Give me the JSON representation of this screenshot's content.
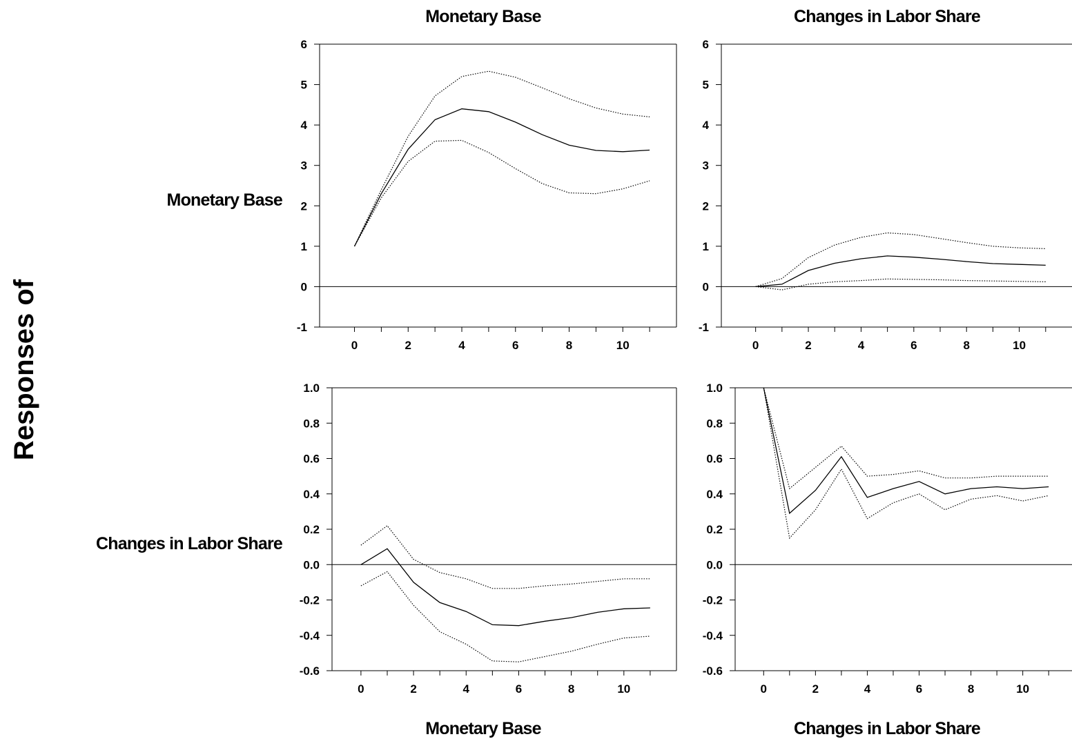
{
  "figure": {
    "row_axis_title": "Responses of",
    "col_titles_top": [
      "Monetary Base",
      "Changes in Labor Share"
    ],
    "col_titles_bottom": [
      "Monetary Base",
      "Changes in Labor Share"
    ],
    "row_titles": [
      "Monetary Base",
      "Changes in Labor Share"
    ]
  },
  "chart_data": [
    {
      "type": "line",
      "response": "Monetary Base",
      "shock": "Monetary Base",
      "x": [
        0,
        1,
        2,
        3,
        4,
        5,
        6,
        7,
        8,
        9,
        10,
        11
      ],
      "series": [
        {
          "role": "lower",
          "style": "dotted",
          "values": [
            1.0,
            2.2,
            3.1,
            3.6,
            3.62,
            3.32,
            2.92,
            2.55,
            2.32,
            2.3,
            2.42,
            2.62
          ]
        },
        {
          "role": "response",
          "style": "solid",
          "values": [
            1.0,
            2.3,
            3.4,
            4.13,
            4.4,
            4.33,
            4.07,
            3.76,
            3.5,
            3.37,
            3.34,
            3.38
          ]
        },
        {
          "role": "upper",
          "style": "dotted",
          "values": [
            1.0,
            2.4,
            3.72,
            4.72,
            5.2,
            5.33,
            5.18,
            4.92,
            4.65,
            4.42,
            4.27,
            4.2
          ]
        }
      ],
      "xticks": [
        "0",
        "2",
        "4",
        "6",
        "8",
        "10"
      ],
      "yticks": [
        "-1",
        "0",
        "1",
        "2",
        "3",
        "4",
        "5",
        "6"
      ],
      "xlim": [
        -1.3,
        12.0
      ],
      "ylim": [
        -1,
        6
      ],
      "zero_line": true
    },
    {
      "type": "line",
      "response": "Monetary Base",
      "shock": "Changes in Labor Share",
      "x": [
        0,
        1,
        2,
        3,
        4,
        5,
        6,
        7,
        8,
        9,
        10,
        11
      ],
      "series": [
        {
          "role": "lower",
          "style": "dotted",
          "values": [
            0.0,
            -0.08,
            0.06,
            0.12,
            0.15,
            0.19,
            0.18,
            0.17,
            0.15,
            0.14,
            0.13,
            0.12
          ]
        },
        {
          "role": "response",
          "style": "solid",
          "values": [
            0.0,
            0.06,
            0.4,
            0.58,
            0.69,
            0.76,
            0.73,
            0.68,
            0.62,
            0.57,
            0.55,
            0.53
          ]
        },
        {
          "role": "upper",
          "style": "dotted",
          "values": [
            0.0,
            0.2,
            0.72,
            1.03,
            1.22,
            1.33,
            1.29,
            1.19,
            1.09,
            1.0,
            0.96,
            0.94
          ]
        }
      ],
      "xticks": [
        "0",
        "2",
        "4",
        "6",
        "8",
        "10"
      ],
      "yticks": [
        "-1",
        "0",
        "1",
        "2",
        "3",
        "4",
        "5",
        "6"
      ],
      "xlim": [
        -1.3,
        12.0
      ],
      "ylim": [
        -1,
        6
      ],
      "zero_line": true
    },
    {
      "type": "line",
      "response": "Changes in Labor Share",
      "shock": "Monetary Base",
      "x": [
        0,
        1,
        2,
        3,
        4,
        5,
        6,
        7,
        8,
        9,
        10,
        11
      ],
      "series": [
        {
          "role": "lower",
          "style": "dotted",
          "values": [
            -0.12,
            -0.04,
            -0.23,
            -0.38,
            -0.45,
            -0.545,
            -0.55,
            -0.52,
            -0.49,
            -0.45,
            -0.415,
            -0.405
          ]
        },
        {
          "role": "response",
          "style": "solid",
          "values": [
            0.0,
            0.09,
            -0.1,
            -0.215,
            -0.265,
            -0.34,
            -0.345,
            -0.32,
            -0.3,
            -0.27,
            -0.25,
            -0.245
          ]
        },
        {
          "role": "upper",
          "style": "dotted",
          "values": [
            0.11,
            0.22,
            0.03,
            -0.045,
            -0.08,
            -0.135,
            -0.135,
            -0.12,
            -0.11,
            -0.095,
            -0.08,
            -0.08
          ]
        }
      ],
      "xticks": [
        "0",
        "2",
        "4",
        "6",
        "8",
        "10"
      ],
      "yticks": [
        "-0.6",
        "-0.4",
        "-0.2",
        "0.0",
        "0.2",
        "0.4",
        "0.6",
        "0.8",
        "1.0"
      ],
      "xlim": [
        -1.1,
        12.0
      ],
      "ylim": [
        -0.6,
        1.0
      ],
      "zero_line": true
    },
    {
      "type": "line",
      "response": "Changes in Labor Share",
      "shock": "Changes in Labor Share",
      "x": [
        0,
        1,
        2,
        3,
        4,
        5,
        6,
        7,
        8,
        9,
        10,
        11
      ],
      "series": [
        {
          "role": "lower",
          "style": "dotted",
          "values": [
            1.0,
            0.15,
            0.31,
            0.54,
            0.26,
            0.35,
            0.4,
            0.31,
            0.37,
            0.39,
            0.36,
            0.39
          ]
        },
        {
          "role": "response",
          "style": "solid",
          "values": [
            1.0,
            0.29,
            0.42,
            0.61,
            0.38,
            0.43,
            0.47,
            0.4,
            0.43,
            0.44,
            0.43,
            0.44
          ]
        },
        {
          "role": "upper",
          "style": "dotted",
          "values": [
            1.0,
            0.43,
            0.55,
            0.67,
            0.5,
            0.51,
            0.53,
            0.49,
            0.49,
            0.5,
            0.5,
            0.5
          ]
        }
      ],
      "xticks": [
        "0",
        "2",
        "4",
        "6",
        "8",
        "10"
      ],
      "yticks": [
        "-0.6",
        "-0.4",
        "-0.2",
        "0.0",
        "0.2",
        "0.4",
        "0.6",
        "0.8",
        "1.0"
      ],
      "xlim": [
        -1.1,
        11.9
      ],
      "ylim": [
        -0.6,
        1.0
      ],
      "zero_line": true
    }
  ]
}
